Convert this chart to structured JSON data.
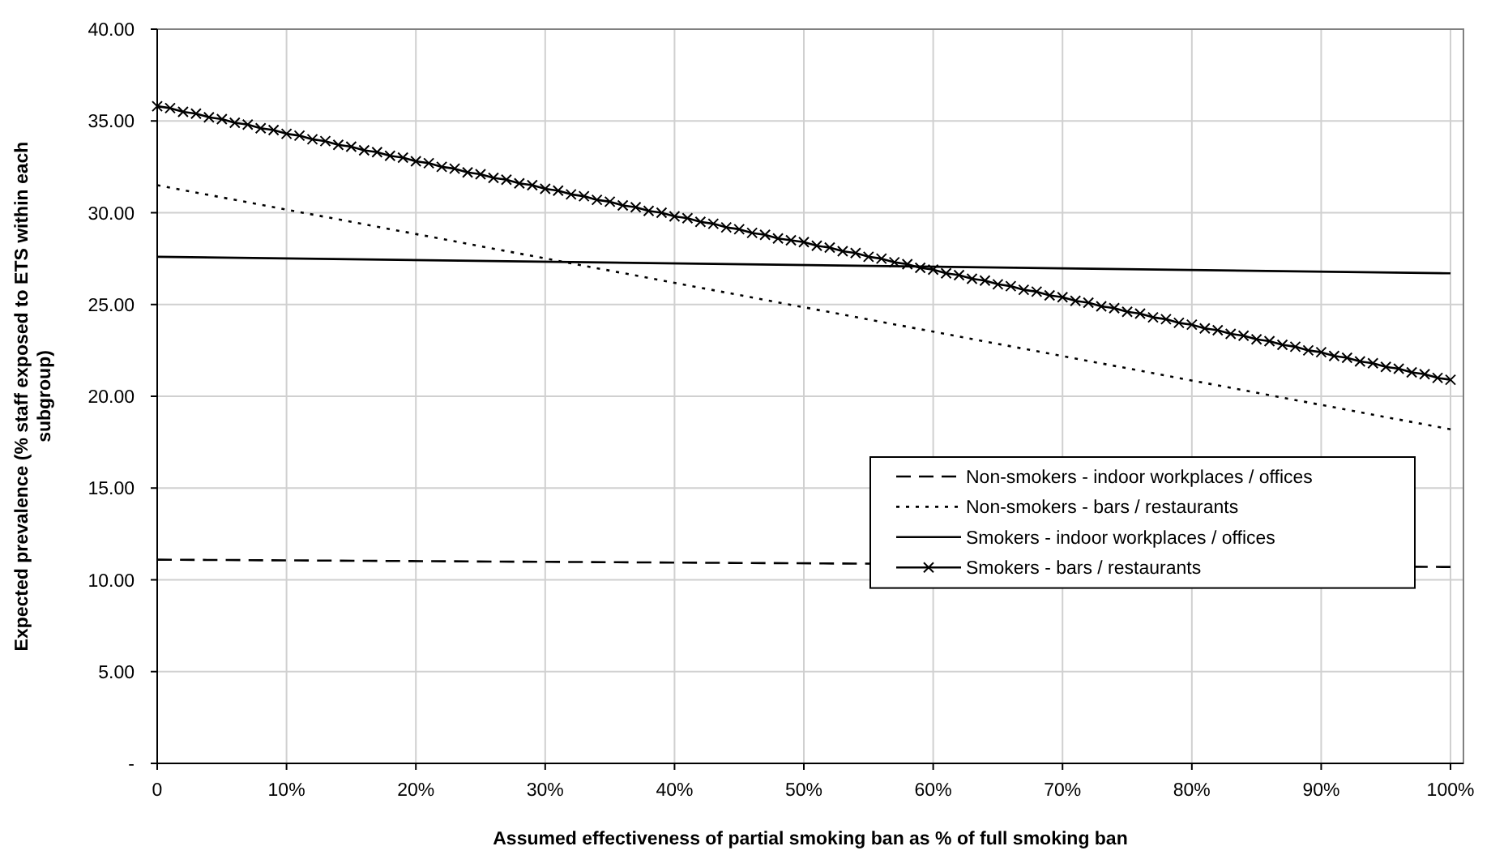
{
  "chart_data": {
    "type": "line",
    "xlabel": "Assumed effectiveness of partial smoking ban as % of full smoking ban",
    "ylabel": "Expected prevalence (% staff exposed to ETS within each subgroup)",
    "xlim": [
      0,
      101
    ],
    "xticks": [
      0,
      {
        "value": 10,
        "label": "10%"
      },
      {
        "value": 20,
        "label": "20%"
      },
      {
        "value": 30,
        "label": "30%"
      },
      {
        "value": 40,
        "label": "40%"
      },
      {
        "value": 50,
        "label": "50%"
      },
      {
        "value": 60,
        "label": "60%"
      },
      {
        "value": 70,
        "label": "70%"
      },
      {
        "value": 80,
        "label": "80%"
      },
      {
        "value": 90,
        "label": "90%"
      },
      {
        "value": 100,
        "label": "100%"
      }
    ],
    "ylim": [
      0,
      40
    ],
    "yticks": [
      {
        "value": 0,
        "label": "-"
      },
      {
        "value": 5,
        "label": "5.00"
      },
      {
        "value": 10,
        "label": "10.00"
      },
      {
        "value": 15,
        "label": "15.00"
      },
      {
        "value": 20,
        "label": "20.00"
      },
      {
        "value": 25,
        "label": "25.00"
      },
      {
        "value": 30,
        "label": "30.00"
      },
      {
        "value": 35,
        "label": "35.00"
      },
      {
        "value": 40,
        "label": "40.00"
      }
    ],
    "grid": true,
    "legend": "right",
    "series": [
      {
        "name": "Non-smokers - indoor workplaces / offices",
        "color": "#000000",
        "line_style": "dashed",
        "marker": "none",
        "x": [
          0,
          100
        ],
        "values": [
          11.1,
          10.7
        ]
      },
      {
        "name": "Non-smokers - bars / restaurants",
        "color": "#000000",
        "line_style": "dotted",
        "marker": "none",
        "x": [
          0,
          100
        ],
        "values": [
          31.5,
          18.2
        ]
      },
      {
        "name": "Smokers - indoor workplaces / offices",
        "color": "#000000",
        "line_style": "solid",
        "marker": "none",
        "x": [
          0,
          100
        ],
        "values": [
          27.6,
          26.7
        ]
      },
      {
        "name": "Smokers - bars / restaurants",
        "color": "#000000",
        "line_style": "solid",
        "marker": "cross",
        "x": [
          0,
          1,
          2,
          3,
          4,
          5,
          6,
          7,
          8,
          9,
          10,
          11,
          12,
          13,
          14,
          15,
          16,
          17,
          18,
          19,
          20,
          21,
          22,
          23,
          24,
          25,
          26,
          27,
          28,
          29,
          30,
          31,
          32,
          33,
          34,
          35,
          36,
          37,
          38,
          39,
          40,
          41,
          42,
          43,
          44,
          45,
          46,
          47,
          48,
          49,
          50,
          51,
          52,
          53,
          54,
          55,
          56,
          57,
          58,
          59,
          60,
          61,
          62,
          63,
          64,
          65,
          66,
          67,
          68,
          69,
          70,
          71,
          72,
          73,
          74,
          75,
          76,
          77,
          78,
          79,
          80,
          81,
          82,
          83,
          84,
          85,
          86,
          87,
          88,
          89,
          90,
          91,
          92,
          93,
          94,
          95,
          96,
          97,
          98,
          99,
          100
        ],
        "values": [
          35.8,
          35.7,
          35.5,
          35.4,
          35.2,
          35.1,
          34.9,
          34.8,
          34.6,
          34.5,
          34.3,
          34.2,
          34.0,
          33.9,
          33.7,
          33.6,
          33.4,
          33.3,
          33.1,
          33.0,
          32.8,
          32.7,
          32.5,
          32.4,
          32.2,
          32.1,
          31.9,
          31.8,
          31.6,
          31.5,
          31.3,
          31.2,
          31.0,
          30.9,
          30.7,
          30.6,
          30.4,
          30.3,
          30.1,
          30.0,
          29.8,
          29.7,
          29.5,
          29.4,
          29.2,
          29.1,
          28.9,
          28.8,
          28.6,
          28.5,
          28.4,
          28.2,
          28.1,
          27.9,
          27.8,
          27.6,
          27.5,
          27.3,
          27.2,
          27.0,
          26.9,
          26.7,
          26.6,
          26.4,
          26.3,
          26.1,
          26.0,
          25.8,
          25.7,
          25.5,
          25.4,
          25.2,
          25.1,
          24.9,
          24.8,
          24.6,
          24.5,
          24.3,
          24.2,
          24.0,
          23.9,
          23.7,
          23.6,
          23.4,
          23.3,
          23.1,
          23.0,
          22.8,
          22.7,
          22.5,
          22.4,
          22.2,
          22.1,
          21.9,
          21.8,
          21.6,
          21.5,
          21.3,
          21.2,
          21.0,
          20.9
        ]
      }
    ]
  }
}
